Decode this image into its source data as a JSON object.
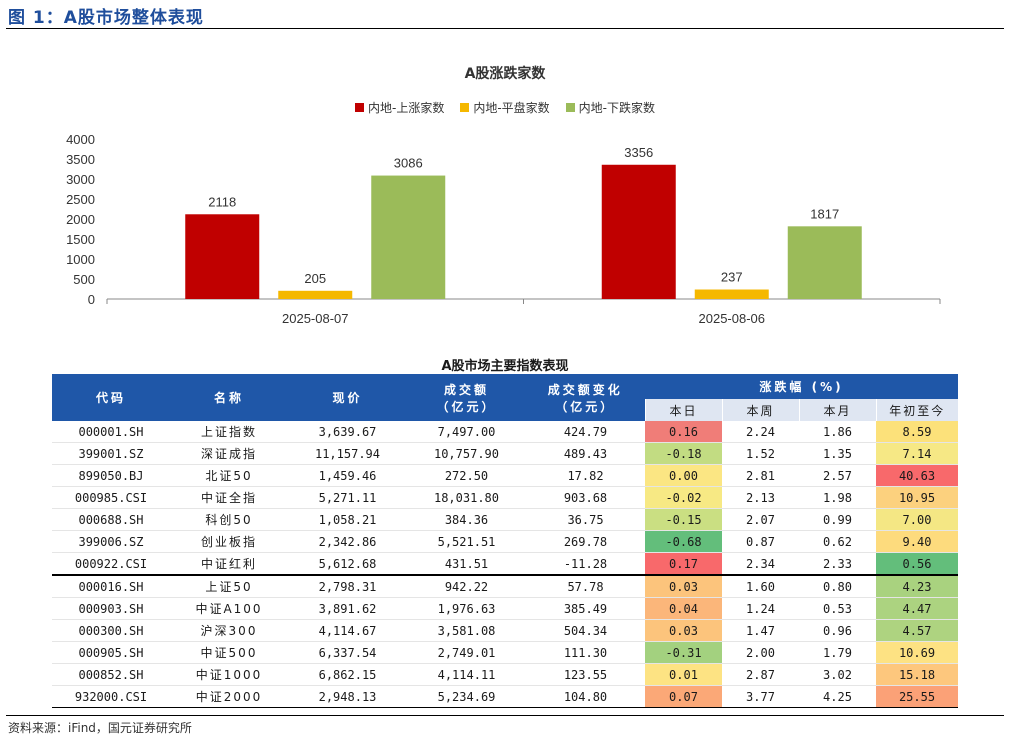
{
  "figure_title": "图 1：A股市场整体表现",
  "source": "资料来源：iFind，国元证券研究所",
  "chart_data": {
    "type": "bar",
    "title": "A股涨跌家数",
    "categories": [
      "2025-08-07",
      "2025-08-06"
    ],
    "series": [
      {
        "name": "内地-上涨家数",
        "color": "#c00000",
        "values": [
          2118,
          3356
        ]
      },
      {
        "name": "内地-平盘家数",
        "color": "#f5b800",
        "values": [
          205,
          237
        ]
      },
      {
        "name": "内地-下跌家数",
        "color": "#9bbb59",
        "values": [
          3086,
          1817
        ]
      }
    ],
    "ylim": [
      0,
      4000
    ],
    "yticks": [
      0,
      500,
      1000,
      1500,
      2000,
      2500,
      3000,
      3500,
      4000
    ],
    "legend_position": "top",
    "grid": false
  },
  "table": {
    "title": "A股市场主要指数表现",
    "headers": {
      "code": "代码",
      "name": "名称",
      "price": "现价",
      "volume_line1": "成交额",
      "volume_line2": "（亿元）",
      "vol_change_line1": "成交额变化",
      "vol_change_line2": "（亿元）",
      "pct_group": "涨跌幅 (%)",
      "day": "本日",
      "week": "本周",
      "month": "本月",
      "ytd": "年初至今"
    },
    "rows": [
      {
        "code": "000001.SH",
        "name": "上证指数",
        "price": "3,639.67",
        "volume": "7,497.00",
        "vol_change": "424.79",
        "day": "0.16",
        "week": "2.24",
        "month": "1.86",
        "ytd": "8.59",
        "day_color": "#f07d78",
        "ytd_color": "#fce17a"
      },
      {
        "code": "399001.SZ",
        "name": "深证成指",
        "price": "11,157.94",
        "volume": "10,757.90",
        "vol_change": "489.43",
        "day": "-0.18",
        "week": "1.52",
        "month": "1.35",
        "ytd": "7.14",
        "day_color": "#c2dc82",
        "ytd_color": "#f6e885"
      },
      {
        "code": "899050.BJ",
        "name": "北证50",
        "price": "1,459.46",
        "volume": "272.50",
        "vol_change": "17.82",
        "day": "0.00",
        "week": "2.81",
        "month": "2.57",
        "ytd": "40.63",
        "day_color": "#fbe683",
        "ytd_color": "#f8696b"
      },
      {
        "code": "000985.CSI",
        "name": "中证全指",
        "price": "5,271.11",
        "volume": "18,031.80",
        "vol_change": "903.68",
        "day": "-0.02",
        "week": "2.13",
        "month": "1.98",
        "ytd": "10.95",
        "day_color": "#f7e984",
        "ytd_color": "#fcd17e"
      },
      {
        "code": "000688.SH",
        "name": "科创50",
        "price": "1,058.21",
        "volume": "384.36",
        "vol_change": "36.75",
        "day": "-0.15",
        "week": "2.07",
        "month": "0.99",
        "ytd": "7.00",
        "day_color": "#cadf82",
        "ytd_color": "#f4e784"
      },
      {
        "code": "399006.SZ",
        "name": "创业板指",
        "price": "2,342.86",
        "volume": "5,521.51",
        "vol_change": "269.78",
        "day": "-0.68",
        "week": "0.87",
        "month": "0.62",
        "ytd": "9.40",
        "day_color": "#63be7b",
        "ytd_color": "#fddb7d"
      },
      {
        "code": "000922.CSI",
        "name": "中证红利",
        "price": "5,612.68",
        "volume": "431.51",
        "vol_change": "-11.28",
        "day": "0.17",
        "week": "2.34",
        "month": "2.33",
        "ytd": "0.56",
        "day_color": "#f8696b",
        "ytd_color": "#63be7b"
      },
      {
        "code": "000016.SH",
        "name": "上证50",
        "price": "2,798.31",
        "volume": "942.22",
        "vol_change": "57.78",
        "day": "0.03",
        "week": "1.60",
        "month": "0.80",
        "ytd": "4.23",
        "day_color": "#fcc47c",
        "ytd_color": "#a9d27f"
      },
      {
        "code": "000903.SH",
        "name": "中证A100",
        "price": "3,891.62",
        "volume": "1,976.63",
        "vol_change": "385.49",
        "day": "0.04",
        "week": "1.24",
        "month": "0.53",
        "ytd": "4.47",
        "day_color": "#fbb67a",
        "ytd_color": "#acd380"
      },
      {
        "code": "000300.SH",
        "name": "沪深300",
        "price": "4,114.67",
        "volume": "3,581.08",
        "vol_change": "504.34",
        "day": "0.03",
        "week": "1.47",
        "month": "0.96",
        "ytd": "4.57",
        "day_color": "#fcc47c",
        "ytd_color": "#aed380"
      },
      {
        "code": "000905.SH",
        "name": "中证500",
        "price": "6,337.54",
        "volume": "2,749.01",
        "vol_change": "111.30",
        "day": "-0.31",
        "week": "2.00",
        "month": "1.79",
        "ytd": "10.69",
        "day_color": "#a3d17f",
        "ytd_color": "#fde283"
      },
      {
        "code": "000852.SH",
        "name": "中证1000",
        "price": "6,862.15",
        "volume": "4,114.11",
        "vol_change": "123.55",
        "day": "0.01",
        "week": "2.87",
        "month": "3.02",
        "ytd": "15.18",
        "day_color": "#fde383",
        "ytd_color": "#fdc77d"
      },
      {
        "code": "932000.CSI",
        "name": "中证2000",
        "price": "2,948.13",
        "volume": "5,234.69",
        "vol_change": "104.80",
        "day": "0.07",
        "week": "3.77",
        "month": "4.25",
        "ytd": "25.55",
        "day_color": "#fba877",
        "ytd_color": "#fba177"
      }
    ]
  }
}
